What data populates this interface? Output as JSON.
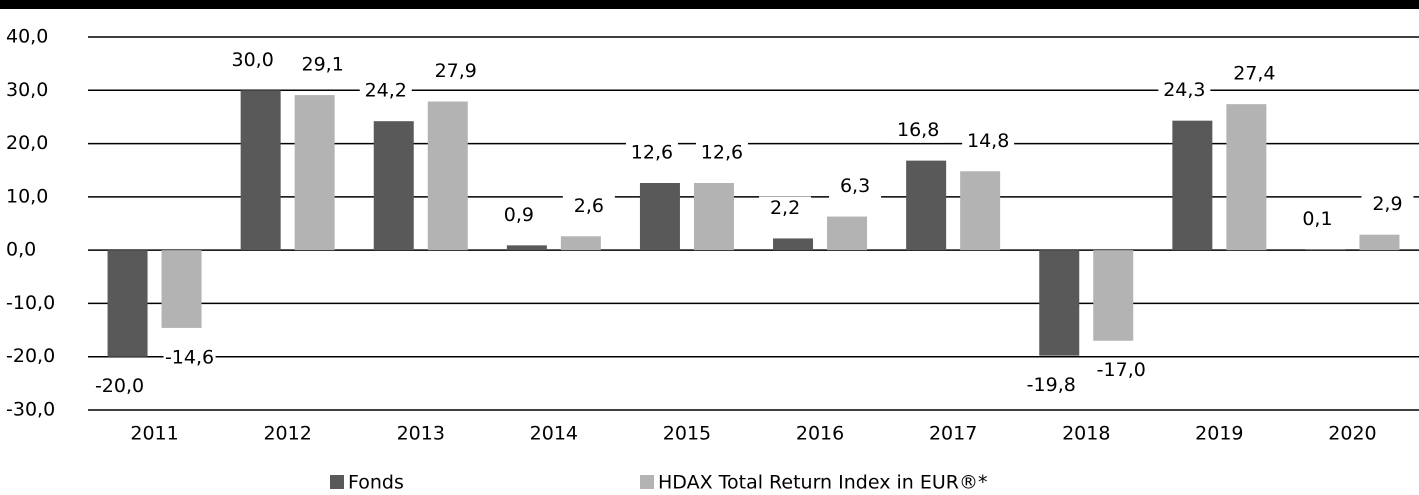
{
  "chart_data": {
    "type": "bar",
    "categories": [
      "2011",
      "2012",
      "2013",
      "2014",
      "2015",
      "2016",
      "2017",
      "2018",
      "2019",
      "2020"
    ],
    "series": [
      {
        "name": "Fonds",
        "color": "#595959",
        "values": [
          -20.0,
          30.0,
          24.2,
          0.9,
          12.6,
          2.2,
          16.8,
          -19.8,
          24.3,
          0.1
        ],
        "value_labels": [
          "-20,0",
          "30,0",
          "24,2",
          "0,9",
          "12,6",
          "2,2",
          "16,8",
          "-19,8",
          "24,3",
          "0,1"
        ]
      },
      {
        "name": "HDAX Total Return Index in EUR®*",
        "color": "#b3b3b3",
        "values": [
          -14.6,
          29.1,
          27.9,
          2.6,
          12.6,
          6.3,
          14.8,
          -17.0,
          27.4,
          2.9
        ],
        "value_labels": [
          "-14,6",
          "29,1",
          "27,9",
          "2,6",
          "12,6",
          "6,3",
          "14,8",
          "-17,0",
          "27,4",
          "2,9"
        ]
      }
    ],
    "ylim": [
      -30,
      40
    ],
    "yticks": [
      {
        "value": -30,
        "label": "-30,0"
      },
      {
        "value": -20,
        "label": "-20,0"
      },
      {
        "value": -10,
        "label": "-10,0"
      },
      {
        "value": 0,
        "label": "0,0"
      },
      {
        "value": 10,
        "label": "10,0"
      },
      {
        "value": 20,
        "label": "20,0"
      },
      {
        "value": 30,
        "label": "30,0"
      },
      {
        "value": 40,
        "label": "40,0"
      }
    ],
    "grid": true,
    "legend": "bottom"
  }
}
